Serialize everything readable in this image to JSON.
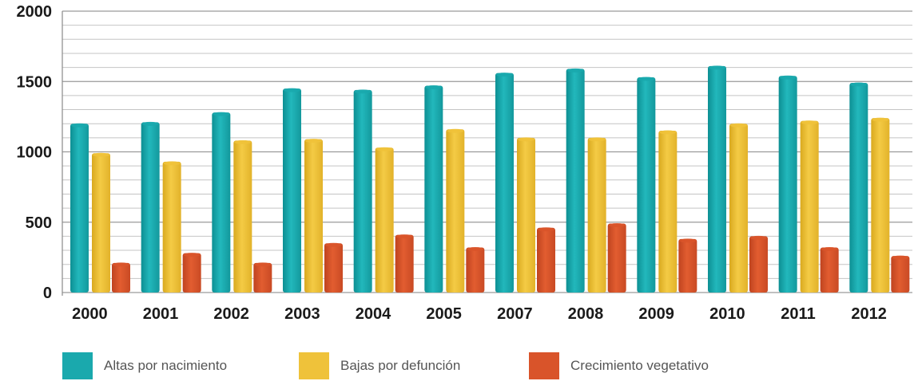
{
  "chart_data": {
    "type": "bar",
    "categories": [
      "2000",
      "2001",
      "2002",
      "2003",
      "2004",
      "2005",
      "2007",
      "2008",
      "2009",
      "2010",
      "2011",
      "2012"
    ],
    "series": [
      {
        "name": "Altas por nacimiento",
        "color": "#1aa9ad",
        "values": [
          1200,
          1210,
          1280,
          1450,
          1440,
          1470,
          1560,
          1590,
          1530,
          1610,
          1540,
          1490
        ]
      },
      {
        "name": "Bajas por defunción",
        "color": "#efc23a",
        "values": [
          990,
          930,
          1080,
          1090,
          1030,
          1160,
          1100,
          1100,
          1150,
          1200,
          1220,
          1240
        ]
      },
      {
        "name": "Crecimiento vegetativo",
        "color": "#d9542a",
        "values": [
          210,
          280,
          210,
          350,
          410,
          320,
          460,
          490,
          380,
          400,
          320,
          260
        ]
      }
    ],
    "yticks": [
      "0",
      "500",
      "1000",
      "1500",
      "2000"
    ],
    "ylim": [
      0,
      2000
    ],
    "grid": true,
    "legend_position": "bottom-left"
  }
}
